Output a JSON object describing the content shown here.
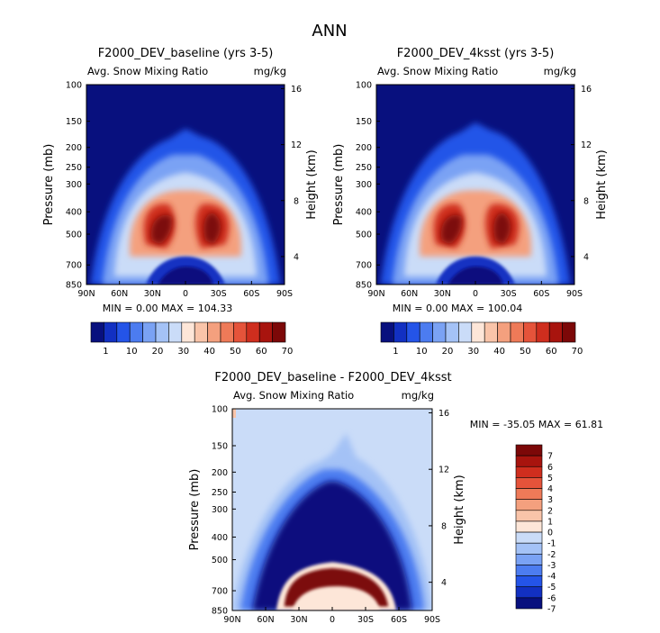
{
  "figure_title": "ANN",
  "chart_data": [
    {
      "type": "heatmap",
      "title": "F2000_DEV_baseline (yrs 3-5)",
      "subtitle_left": "Avg. Snow Mixing Ratio",
      "subtitle_right": "mg/kg",
      "xlabel": "",
      "ylabel": "Pressure (mb)",
      "y2label": "Height (km)",
      "x_ticks": [
        "90N",
        "60N",
        "30N",
        "0",
        "30S",
        "60S",
        "90S"
      ],
      "y_ticks": [
        "100",
        "150",
        "200",
        "250",
        "300",
        "400",
        "500",
        "700",
        "850"
      ],
      "y2_ticks": [
        "16",
        "12",
        "8",
        "4"
      ],
      "stats": "MIN =    0.00   MAX = 104.33",
      "min": 0.0,
      "max": 104.33,
      "colorbar_labels": [
        "1",
        "10",
        "20",
        "30",
        "40",
        "50",
        "60",
        "70"
      ],
      "colorbar_colors": [
        "#08107e",
        "#1230c2",
        "#2454e8",
        "#4c7cf0",
        "#7aa2f4",
        "#a4c2f6",
        "#cadcf8",
        "#fde6d8",
        "#f9c4a9",
        "#f4a07e",
        "#ee7a58",
        "#e5533a",
        "#cf2e1e",
        "#a8140e",
        "#7c0808"
      ]
    },
    {
      "type": "heatmap",
      "title": "F2000_DEV_4ksst (yrs 3-5)",
      "subtitle_left": "Avg. Snow Mixing Ratio",
      "subtitle_right": "mg/kg",
      "xlabel": "",
      "ylabel": "Pressure (mb)",
      "y2label": "Height (km)",
      "x_ticks": [
        "90N",
        "60N",
        "30N",
        "0",
        "30S",
        "60S",
        "90S"
      ],
      "y_ticks": [
        "100",
        "150",
        "200",
        "250",
        "300",
        "400",
        "500",
        "700",
        "850"
      ],
      "y2_ticks": [
        "16",
        "12",
        "8",
        "4"
      ],
      "stats": "MIN =    0.00   MAX = 100.04",
      "min": 0.0,
      "max": 100.04,
      "colorbar_labels": [
        "1",
        "10",
        "20",
        "30",
        "40",
        "50",
        "60",
        "70"
      ],
      "colorbar_colors": [
        "#08107e",
        "#1230c2",
        "#2454e8",
        "#4c7cf0",
        "#7aa2f4",
        "#a4c2f6",
        "#cadcf8",
        "#fde6d8",
        "#f9c4a9",
        "#f4a07e",
        "#ee7a58",
        "#e5533a",
        "#cf2e1e",
        "#a8140e",
        "#7c0808"
      ]
    },
    {
      "type": "heatmap",
      "title": "F2000_DEV_baseline - F2000_DEV_4ksst",
      "subtitle_left": "Avg. Snow Mixing Ratio",
      "subtitle_right": "mg/kg",
      "xlabel": "",
      "ylabel": "Pressure (mb)",
      "y2label": "Height (km)",
      "x_ticks": [
        "90N",
        "60N",
        "30N",
        "0",
        "30S",
        "60S",
        "90S"
      ],
      "y_ticks": [
        "100",
        "150",
        "200",
        "250",
        "300",
        "400",
        "500",
        "700",
        "850"
      ],
      "y2_ticks": [
        "16",
        "12",
        "8",
        "4"
      ],
      "stats": "MIN = -35.05   MAX =  61.81",
      "min": -35.05,
      "max": 61.81,
      "colorbar_labels": [
        "7",
        "6",
        "5",
        "4",
        "3",
        "2",
        "1",
        "0",
        "-1",
        "-2",
        "-3",
        "-4",
        "-5",
        "-6",
        "-7"
      ],
      "colorbar_colors": [
        "#7c0808",
        "#a8140e",
        "#cf2e1e",
        "#e5533a",
        "#ee7a58",
        "#f4a07e",
        "#f9c4a9",
        "#fde6d8",
        "#cadcf8",
        "#a4c2f6",
        "#7aa2f4",
        "#4c7cf0",
        "#2454e8",
        "#1230c2",
        "#08107e"
      ]
    }
  ]
}
